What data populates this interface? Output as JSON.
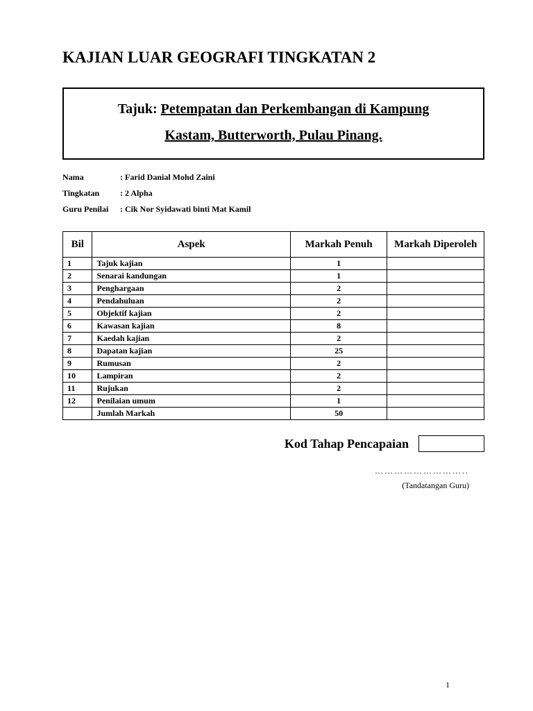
{
  "page_title": "KAJIAN LUAR GEOGRAFI TINGKATAN 2",
  "subject": {
    "prefix": "Tajuk: ",
    "line1": "Petempatan dan Perkembangan di Kampung",
    "line2": "Kastam, Butterworth, Pulau Pinang."
  },
  "info": {
    "nama_label": "Nama",
    "nama_value": ": Farid Danial Mohd Zaini",
    "tingkatan_label": "Tingkatan",
    "tingkatan_value": ": 2 Alpha",
    "guru_label": "Guru Penilai",
    "guru_value": ": Cik Nor Syidawati binti Mat Kamil"
  },
  "table": {
    "headers": {
      "bil": "Bil",
      "aspek": "Aspek",
      "penuh": "Markah Penuh",
      "diperoleh": "Markah Diperoleh"
    },
    "rows": [
      {
        "bil": "1",
        "aspek": "Tajuk kajian",
        "penuh": "1",
        "diperoleh": ""
      },
      {
        "bil": "2",
        "aspek": "Senarai kandungan",
        "penuh": "1",
        "diperoleh": ""
      },
      {
        "bil": "3",
        "aspek": "Penghargaan",
        "penuh": "2",
        "diperoleh": ""
      },
      {
        "bil": "4",
        "aspek": "Pendahuluan",
        "penuh": "2",
        "diperoleh": ""
      },
      {
        "bil": "5",
        "aspek": "Objektif kajian",
        "penuh": "2",
        "diperoleh": ""
      },
      {
        "bil": "6",
        "aspek": "Kawasan kajian",
        "penuh": "8",
        "diperoleh": ""
      },
      {
        "bil": "7",
        "aspek": "Kaedah kajian",
        "penuh": "2",
        "diperoleh": ""
      },
      {
        "bil": "8",
        "aspek": "Dapatan kajian",
        "penuh": "25",
        "diperoleh": ""
      },
      {
        "bil": "9",
        "aspek": "Rumusan",
        "penuh": "2",
        "diperoleh": ""
      },
      {
        "bil": "10",
        "aspek": "Lampiran",
        "penuh": "2",
        "diperoleh": ""
      },
      {
        "bil": "11",
        "aspek": "Rujukan",
        "penuh": "2",
        "diperoleh": ""
      },
      {
        "bil": "12",
        "aspek": "Penilaian umum",
        "penuh": "1",
        "diperoleh": ""
      },
      {
        "bil": "",
        "aspek": "Jumlah Markah",
        "penuh": "50",
        "diperoleh": ""
      }
    ]
  },
  "kod_label": "Kod Tahap Pencapaian",
  "signature": {
    "dots": "………………………..",
    "label": "(Tandatangan Guru)"
  },
  "page_number": "1"
}
